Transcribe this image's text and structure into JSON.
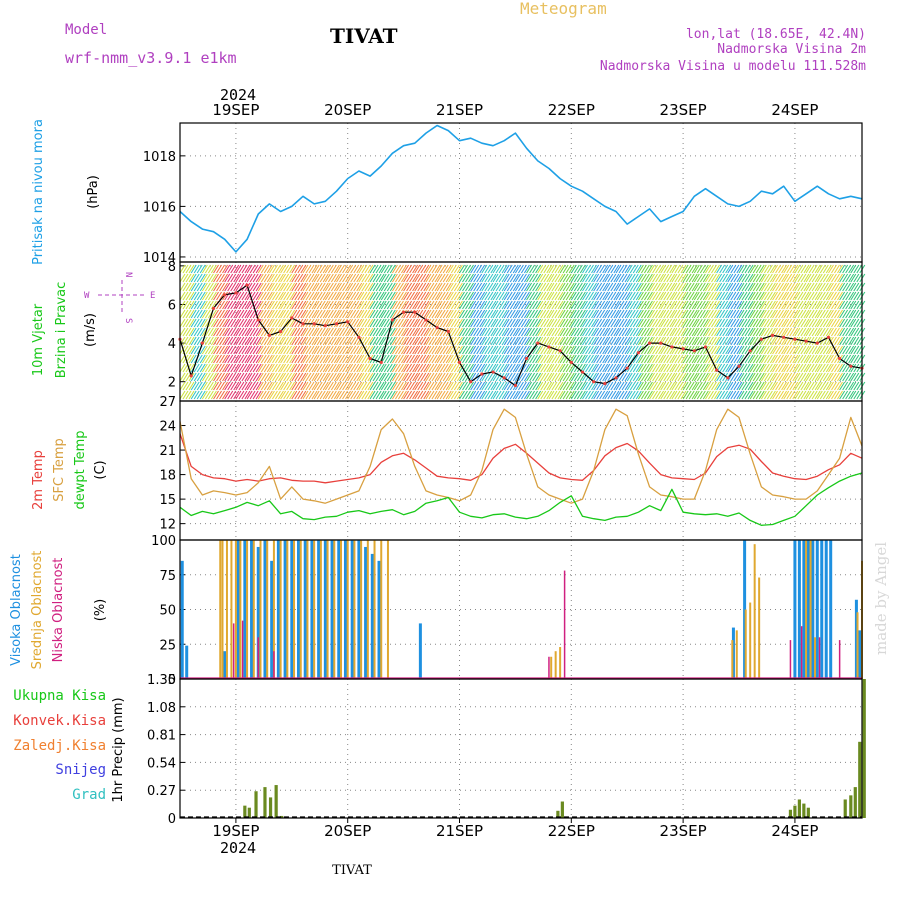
{
  "header": {
    "model_label": "Model",
    "model_name": "wrf-nmm_v3.9.1 e1km",
    "station_title": "TIVAT",
    "meteogram_label": "Meteogram",
    "lonlat": "lon,lat (18.65E, 42.4N)",
    "elevation": "Nadmorska Visina 2m",
    "model_elevation": "Nadmorska Visina u modelu 111.528m",
    "year_top": "2024",
    "year_bottom": "2024",
    "footer_station": "TIVAT",
    "watermark": "made by Angel"
  },
  "colors": {
    "pressure": "#1ea0e6",
    "temp2m": "#e8403c",
    "sfc_temp": "#d8a040",
    "dewpt": "#18c818",
    "high_cloud": "#1e90e0",
    "mid_cloud": "#e0a830",
    "low_cloud": "#d02080",
    "total_precip": "#6a8a20",
    "conv_precip": "#e8403c",
    "frozen_precip": "#f08030",
    "snow": "#4040e0",
    "graupel": "#30c0c0"
  },
  "chart_data": [
    {
      "type": "line",
      "panel": "pressure",
      "title": "",
      "ylabel_parts": [
        "Pritisak na nivou mora",
        "(hPa)"
      ],
      "x_ticks": [
        "19SEP",
        "20SEP",
        "21SEP",
        "22SEP",
        "23SEP",
        "24SEP"
      ],
      "y_ticks": [
        "1014",
        "1016",
        "1018"
      ],
      "ylim": [
        1013.8,
        1019.3
      ],
      "x_range_days": [
        -0.5,
        5.6
      ],
      "grid": true,
      "series": [
        {
          "name": "Pritisak na nivou mora",
          "x": [
            -0.5,
            -0.4,
            -0.3,
            -0.2,
            -0.1,
            0,
            0.1,
            0.2,
            0.3,
            0.4,
            0.5,
            0.6,
            0.7,
            0.8,
            0.9,
            1,
            1.1,
            1.2,
            1.3,
            1.4,
            1.5,
            1.6,
            1.7,
            1.8,
            1.9,
            2,
            2.1,
            2.2,
            2.3,
            2.4,
            2.5,
            2.6,
            2.7,
            2.8,
            2.9,
            3,
            3.1,
            3.2,
            3.3,
            3.4,
            3.5,
            3.6,
            3.7,
            3.8,
            3.9,
            4,
            4.1,
            4.2,
            4.3,
            4.4,
            4.5,
            4.6,
            4.7,
            4.8,
            4.9,
            5,
            5.1,
            5.2,
            5.3,
            5.4,
            5.5,
            5.6
          ],
          "values": [
            1015.8,
            1015.4,
            1015.1,
            1015.0,
            1014.7,
            1014.2,
            1014.7,
            1015.7,
            1016.1,
            1015.8,
            1016.0,
            1016.4,
            1016.1,
            1016.2,
            1016.6,
            1017.1,
            1017.4,
            1017.2,
            1017.6,
            1018.1,
            1018.4,
            1018.5,
            1018.9,
            1019.2,
            1019.0,
            1018.6,
            1018.7,
            1018.5,
            1018.4,
            1018.6,
            1018.9,
            1018.3,
            1017.8,
            1017.5,
            1017.1,
            1016.8,
            1016.6,
            1016.3,
            1016.0,
            1015.8,
            1015.3,
            1015.6,
            1015.9,
            1015.4,
            1015.6,
            1015.8,
            1016.4,
            1016.7,
            1016.4,
            1016.1,
            1016.0,
            1016.2,
            1016.6,
            1016.5,
            1016.8,
            1016.2,
            1016.5,
            1016.8,
            1016.5,
            1016.3,
            1016.4,
            1016.3
          ]
        }
      ]
    },
    {
      "type": "line",
      "panel": "wind",
      "ylabel_parts": [
        "10m Vjetar",
        "Brzina i Pravac",
        "(m/s)"
      ],
      "compass_labels": [
        "W",
        "N",
        "E",
        "S"
      ],
      "y_ticks": [
        "2",
        "4",
        "6",
        "8"
      ],
      "ylim": [
        1.0,
        8.2
      ],
      "grid": true,
      "series": [
        {
          "name": "Brzina",
          "x": [
            -0.5,
            -0.4,
            -0.3,
            -0.2,
            -0.1,
            0,
            0.1,
            0.2,
            0.3,
            0.4,
            0.5,
            0.6,
            0.7,
            0.8,
            0.9,
            1,
            1.1,
            1.2,
            1.3,
            1.4,
            1.5,
            1.6,
            1.7,
            1.8,
            1.9,
            2,
            2.1,
            2.2,
            2.3,
            2.4,
            2.5,
            2.6,
            2.7,
            2.8,
            2.9,
            3,
            3.1,
            3.2,
            3.3,
            3.4,
            3.5,
            3.6,
            3.7,
            3.8,
            3.9,
            4,
            4.1,
            4.2,
            4.3,
            4.4,
            4.5,
            4.6,
            4.7,
            4.8,
            4.9,
            5,
            5.1,
            5.2,
            5.3,
            5.4,
            5.5,
            5.6
          ],
          "values": [
            4.2,
            2.3,
            4.0,
            5.8,
            6.5,
            6.6,
            7.0,
            5.2,
            4.4,
            4.6,
            5.3,
            5.0,
            5.0,
            4.9,
            5.0,
            5.1,
            4.3,
            3.2,
            3.0,
            5.2,
            5.6,
            5.6,
            5.2,
            4.8,
            4.6,
            3.0,
            2.0,
            2.4,
            2.5,
            2.2,
            1.8,
            3.2,
            4.0,
            3.8,
            3.6,
            3.0,
            2.5,
            2.0,
            1.9,
            2.2,
            2.7,
            3.5,
            4.0,
            4.0,
            3.8,
            3.7,
            3.6,
            3.8,
            2.6,
            2.2,
            2.8,
            3.6,
            4.2,
            4.4,
            4.3,
            4.2,
            4.1,
            4.0,
            4.3,
            3.2,
            2.8,
            2.7
          ]
        }
      ]
    },
    {
      "type": "line",
      "panel": "temperature",
      "ylabel_parts": [
        "2m Temp",
        "SFC Temp",
        "dewpt Temp",
        "(C)"
      ],
      "y_ticks": [
        "12",
        "15",
        "18",
        "21",
        "24",
        "27"
      ],
      "ylim": [
        10.0,
        27.0
      ],
      "grid": true,
      "series": [
        {
          "name": "2m Temp",
          "x": [
            -0.5,
            -0.4,
            -0.3,
            -0.2,
            -0.1,
            0,
            0.1,
            0.2,
            0.3,
            0.4,
            0.5,
            0.6,
            0.7,
            0.8,
            0.9,
            1,
            1.1,
            1.2,
            1.3,
            1.4,
            1.5,
            1.6,
            1.7,
            1.8,
            1.9,
            2,
            2.1,
            2.2,
            2.3,
            2.4,
            2.5,
            2.6,
            2.7,
            2.8,
            2.9,
            3,
            3.1,
            3.2,
            3.3,
            3.4,
            3.5,
            3.6,
            3.7,
            3.8,
            3.9,
            4,
            4.1,
            4.2,
            4.3,
            4.4,
            4.5,
            4.6,
            4.7,
            4.8,
            4.9,
            5,
            5.1,
            5.2,
            5.3,
            5.4,
            5.5,
            5.6
          ],
          "values": [
            23,
            19,
            18,
            17.6,
            17.5,
            17.2,
            17.4,
            17.2,
            17.5,
            17.6,
            17.3,
            17.2,
            17.2,
            17,
            17.2,
            17.4,
            17.6,
            18,
            19.5,
            20.3,
            20.6,
            19.8,
            18.8,
            17.8,
            17.6,
            17.5,
            17.3,
            18,
            20,
            21.2,
            21.7,
            20.6,
            19.4,
            18.2,
            17.6,
            17.4,
            17.3,
            18.5,
            20.3,
            21.3,
            21.8,
            20.9,
            19.4,
            18.0,
            17.6,
            17.5,
            17.4,
            18.2,
            20.2,
            21.3,
            21.6,
            21.1,
            19.6,
            18.2,
            17.8,
            17.5,
            17.4,
            17.8,
            18.6,
            19.2,
            20.6,
            20.0
          ]
        },
        {
          "name": "SFC Temp",
          "x": [
            -0.5,
            -0.4,
            -0.3,
            -0.2,
            -0.1,
            0,
            0.1,
            0.2,
            0.3,
            0.4,
            0.5,
            0.6,
            0.7,
            0.8,
            0.9,
            1,
            1.1,
            1.2,
            1.3,
            1.4,
            1.5,
            1.6,
            1.7,
            1.8,
            1.9,
            2,
            2.1,
            2.2,
            2.3,
            2.4,
            2.5,
            2.6,
            2.7,
            2.8,
            2.9,
            3,
            3.1,
            3.2,
            3.3,
            3.4,
            3.5,
            3.6,
            3.7,
            3.8,
            3.9,
            4,
            4.1,
            4.2,
            4.3,
            4.4,
            4.5,
            4.6,
            4.7,
            4.8,
            4.9,
            5,
            5.1,
            5.2,
            5.3,
            5.4,
            5.5,
            5.6
          ],
          "values": [
            24.5,
            17.5,
            15.5,
            16,
            15.8,
            15.5,
            15.8,
            17,
            19,
            15,
            16.5,
            15,
            14.8,
            14.5,
            15,
            15.5,
            16,
            19,
            23.5,
            24.8,
            23,
            19,
            16,
            15.5,
            15.2,
            14.8,
            15.5,
            18.5,
            23.5,
            26,
            25,
            20.5,
            16.5,
            15.5,
            15,
            14.5,
            15,
            18.5,
            23.5,
            26,
            25.2,
            20.5,
            16.5,
            15.5,
            15.3,
            15,
            15,
            18.5,
            23.5,
            26,
            25,
            20.5,
            16.5,
            15.5,
            15.3,
            15,
            15,
            16,
            18,
            20,
            25,
            21.5
          ]
        },
        {
          "name": "dewpt Temp",
          "x": [
            -0.5,
            -0.4,
            -0.3,
            -0.2,
            -0.1,
            0,
            0.1,
            0.2,
            0.3,
            0.4,
            0.5,
            0.6,
            0.7,
            0.8,
            0.9,
            1,
            1.1,
            1.2,
            1.3,
            1.4,
            1.5,
            1.6,
            1.7,
            1.8,
            1.9,
            2,
            2.1,
            2.2,
            2.3,
            2.4,
            2.5,
            2.6,
            2.7,
            2.8,
            2.9,
            3,
            3.1,
            3.2,
            3.3,
            3.4,
            3.5,
            3.6,
            3.7,
            3.8,
            3.9,
            4,
            4.1,
            4.2,
            4.3,
            4.4,
            4.5,
            4.6,
            4.7,
            4.8,
            4.9,
            5,
            5.1,
            5.2,
            5.3,
            5.4,
            5.5,
            5.6
          ],
          "values": [
            14,
            13,
            13.5,
            13.2,
            13.6,
            14,
            14.6,
            14.2,
            14.8,
            13.2,
            13.5,
            12.6,
            12.5,
            12.8,
            12.9,
            13.4,
            13.6,
            13.2,
            13.5,
            13.7,
            13.1,
            13.5,
            14.5,
            14.8,
            15.2,
            13.4,
            12.9,
            12.7,
            13.1,
            13.2,
            12.8,
            12.6,
            12.9,
            13.6,
            14.6,
            15.4,
            12.9,
            12.6,
            12.4,
            12.8,
            12.9,
            13.4,
            14.2,
            13.6,
            16.2,
            13.4,
            13.2,
            13.1,
            13.2,
            12.9,
            13.3,
            12.4,
            11.8,
            11.9,
            12.4,
            12.9,
            14.2,
            15.5,
            16.4,
            17.2,
            17.8,
            18.2
          ]
        }
      ]
    },
    {
      "type": "bar",
      "panel": "clouds",
      "ylabel_parts": [
        "Visoka Oblacnost",
        "Srednja Oblacnost",
        "Niska Oblacnost",
        "(%)"
      ],
      "y_ticks": [
        "0",
        "25",
        "50",
        "75",
        "100"
      ],
      "ylim": [
        0,
        100
      ],
      "grid": true,
      "series": [
        {
          "name": "Visoka Oblacnost",
          "x": [
            -0.48,
            -0.44,
            -0.1,
            0.02,
            0.08,
            0.14,
            0.2,
            0.26,
            0.32,
            0.38,
            0.44,
            0.5,
            0.56,
            0.62,
            0.68,
            0.74,
            0.8,
            0.86,
            0.92,
            0.98,
            1.04,
            1.1,
            1.16,
            1.22,
            1.28,
            1.65,
            4.45,
            4.55,
            5.0,
            5.04,
            5.08,
            5.12,
            5.16,
            5.2,
            5.24,
            5.28,
            5.32,
            5.55,
            5.58
          ],
          "values": [
            85,
            24,
            20,
            100,
            100,
            100,
            95,
            100,
            85,
            100,
            100,
            100,
            100,
            100,
            100,
            100,
            100,
            100,
            100,
            100,
            100,
            100,
            95,
            90,
            85,
            40,
            37,
            100,
            100,
            100,
            100,
            100,
            100,
            100,
            100,
            100,
            100,
            57,
            35
          ]
        },
        {
          "name": "Srednja Oblacnost",
          "x": [
            -0.14,
            -0.12,
            -0.08,
            -0.04,
            0.0,
            0.04,
            0.1,
            0.16,
            0.22,
            0.28,
            0.34,
            0.4,
            0.46,
            0.52,
            0.58,
            0.64,
            0.7,
            0.76,
            0.82,
            0.88,
            0.94,
            1.0,
            1.06,
            1.12,
            1.18,
            1.24,
            1.3,
            1.36,
            2.82,
            2.86,
            2.9,
            4.44,
            4.48,
            4.56,
            4.6,
            4.64,
            4.68,
            5.1,
            5.14,
            5.18,
            5.56,
            5.6
          ],
          "values": [
            100,
            100,
            100,
            100,
            100,
            100,
            100,
            100,
            100,
            100,
            100,
            100,
            100,
            100,
            100,
            100,
            100,
            100,
            100,
            100,
            100,
            100,
            100,
            100,
            100,
            100,
            100,
            100,
            16,
            20,
            23,
            28,
            35,
            50,
            55,
            97,
            73,
            100,
            100,
            30,
            48,
            85
          ]
        },
        {
          "name": "Niska Oblacnost",
          "x": [
            -0.02,
            0.06,
            0.2,
            0.34,
            2.8,
            2.94,
            4.96,
            5.06,
            5.22,
            5.4
          ],
          "values": [
            40,
            42,
            30,
            20,
            16,
            78,
            28,
            38,
            30,
            28
          ]
        }
      ]
    },
    {
      "type": "bar",
      "panel": "precipitation",
      "ylabel_parts": [
        "1hr Precip (mm)"
      ],
      "legend": [
        "Ukupna Kisa",
        "Konvek.Kisa",
        "Zaledj.Kisa",
        "Snijeg",
        "Grad"
      ],
      "y_ticks": [
        "0",
        "0.27",
        "0.54",
        "0.81",
        "1.08",
        "1.35"
      ],
      "ylim": [
        0,
        1.35
      ],
      "grid": true,
      "series": [
        {
          "name": "Ukupna Kisa",
          "x": [
            0.08,
            0.12,
            0.18,
            0.26,
            0.31,
            0.36,
            0.41,
            2.88,
            2.92,
            4.96,
            5.0,
            5.04,
            5.08,
            5.12,
            5.45,
            5.5,
            5.54,
            5.58,
            5.62
          ],
          "values": [
            0.12,
            0.1,
            0.26,
            0.3,
            0.2,
            0.32,
            0.02,
            0.07,
            0.16,
            0.08,
            0.12,
            0.18,
            0.14,
            0.1,
            0.18,
            0.22,
            0.3,
            0.74,
            1.35
          ]
        }
      ]
    }
  ]
}
